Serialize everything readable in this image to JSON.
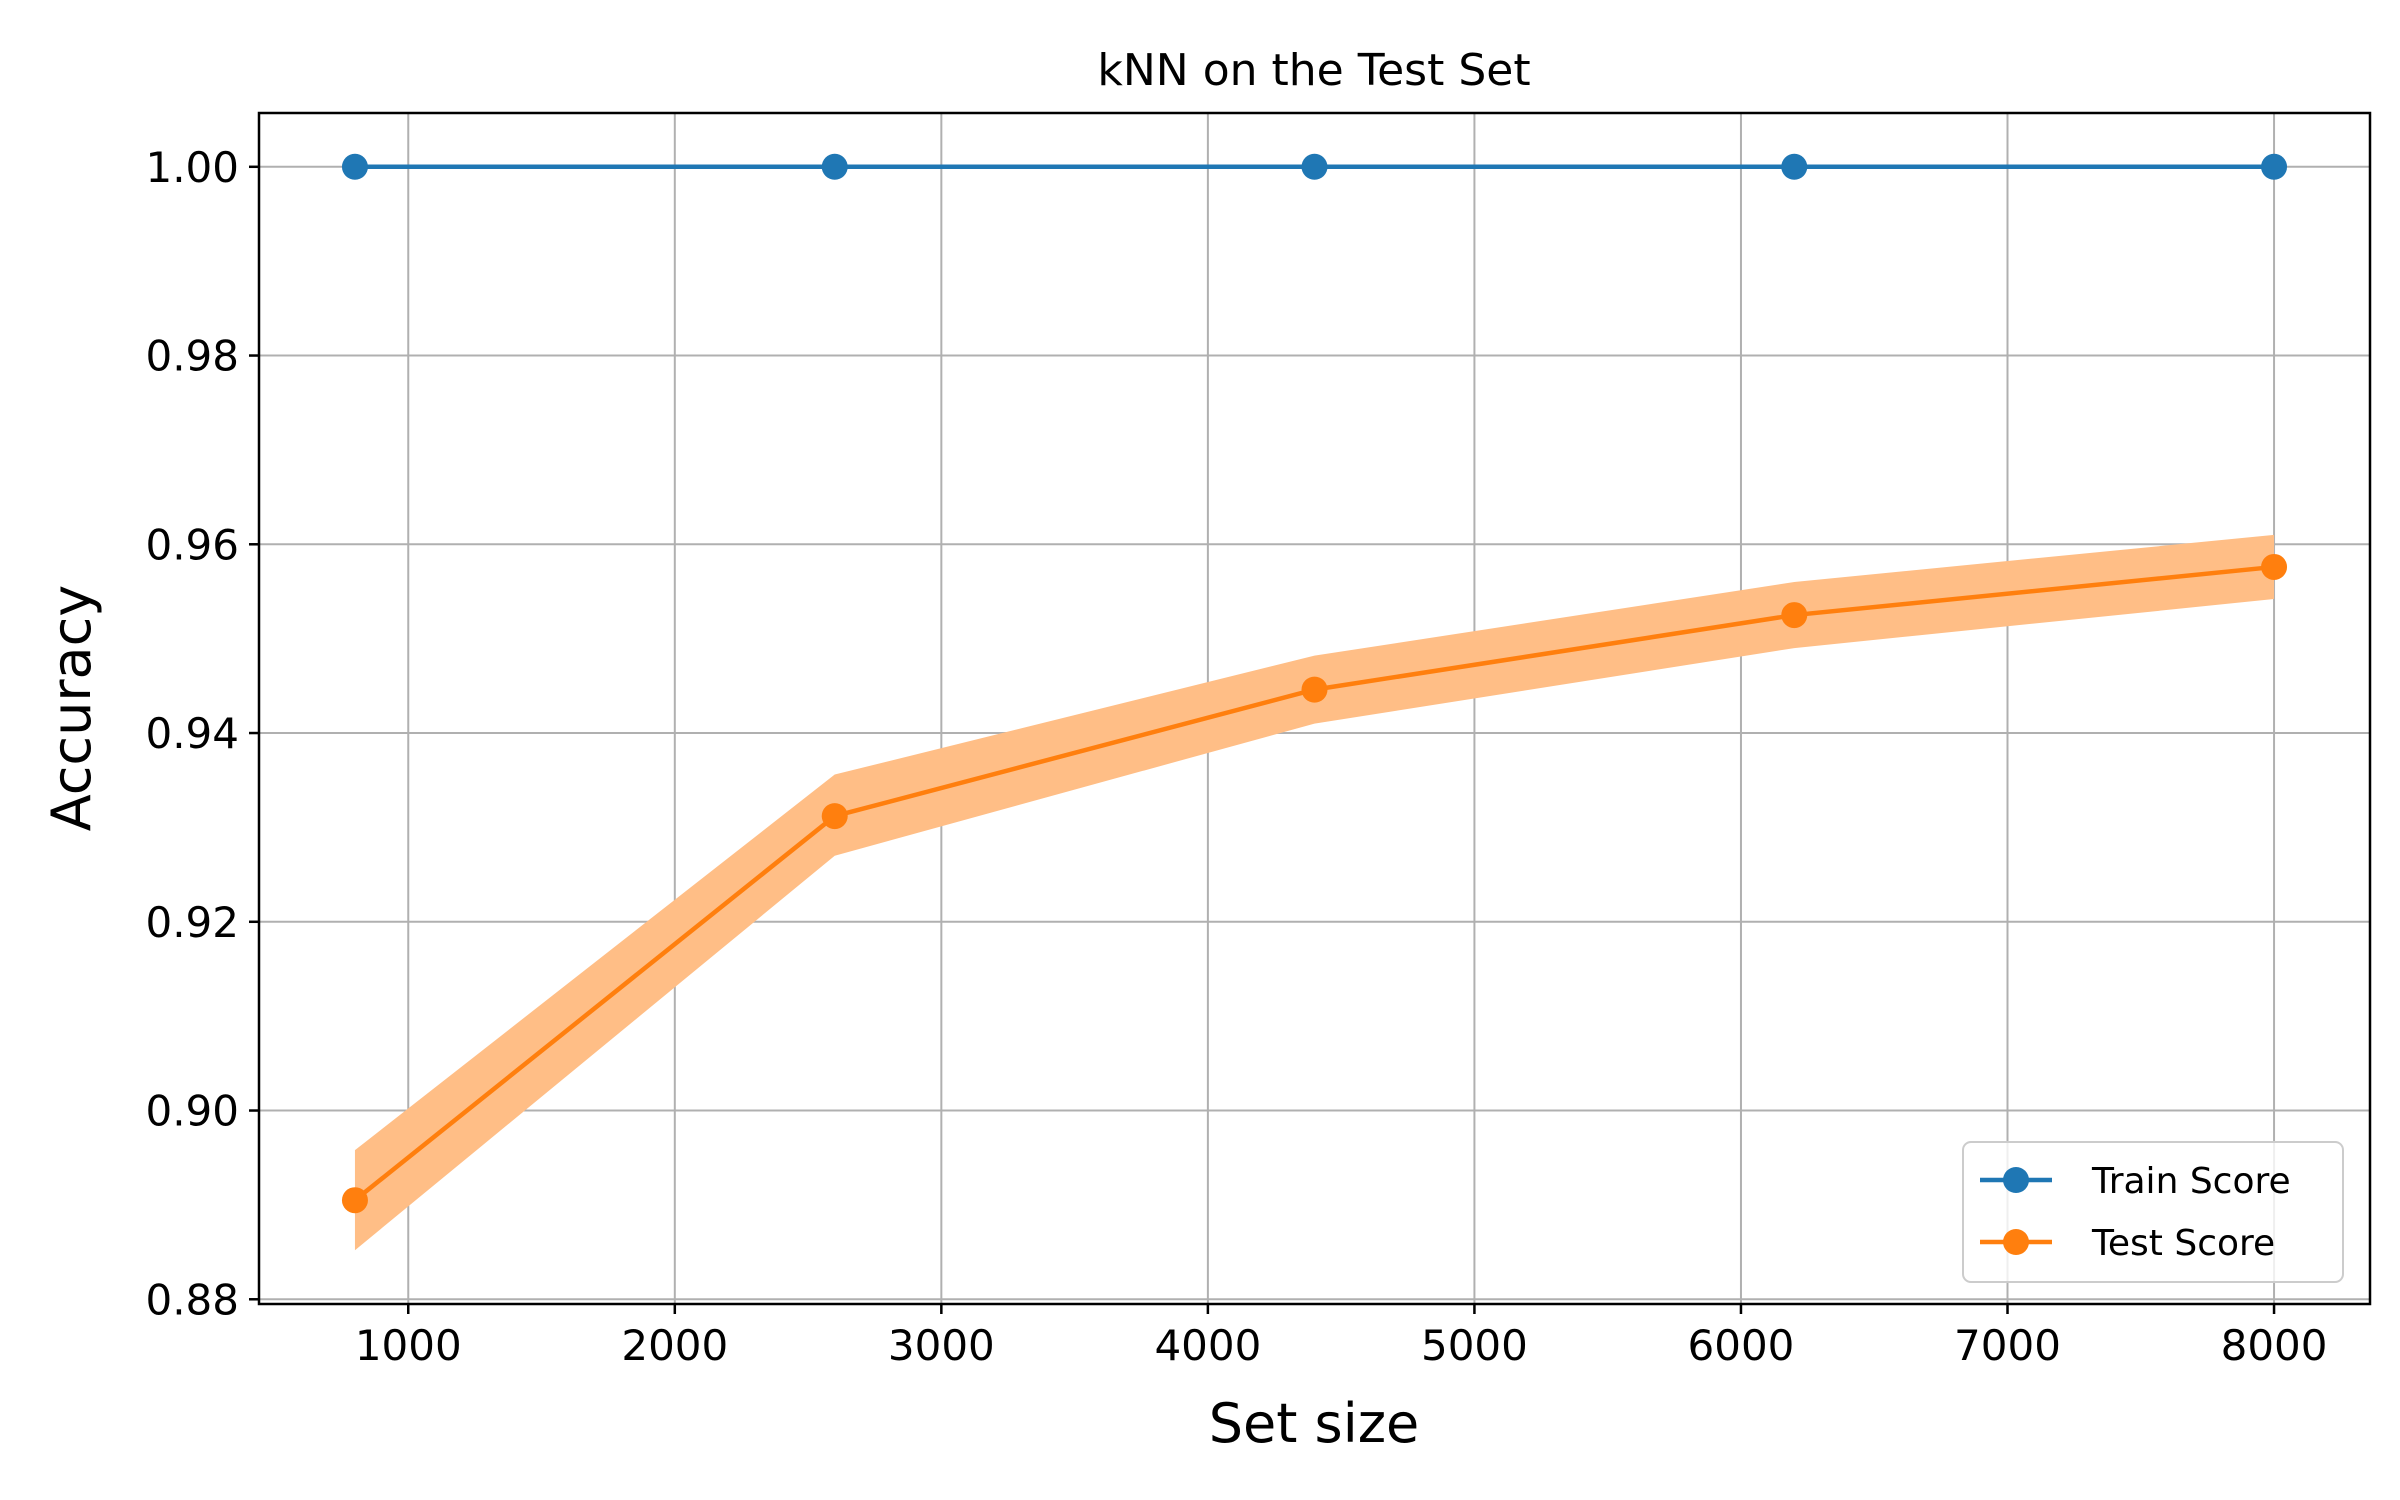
{
  "chart_data": {
    "type": "line",
    "title": "kNN on the Test Set",
    "xlabel": "Set size",
    "ylabel": "Accuracy",
    "xlim": [
      440,
      8360
    ],
    "ylim": [
      0.8795,
      1.0057
    ],
    "x": [
      800,
      2600,
      4400,
      6200,
      8000
    ],
    "xticks": [
      1000,
      2000,
      3000,
      4000,
      5000,
      6000,
      7000,
      8000
    ],
    "xtick_labels": [
      "1000",
      "2000",
      "3000",
      "4000",
      "5000",
      "6000",
      "7000",
      "8000"
    ],
    "yticks": [
      0.88,
      0.9,
      0.92,
      0.94,
      0.96,
      0.98,
      1.0
    ],
    "ytick_labels": [
      "0.88",
      "0.90",
      "0.92",
      "0.94",
      "0.96",
      "0.98",
      "1.00"
    ],
    "grid": true,
    "legend_position": "lower-right",
    "series": [
      {
        "name": "Train Score",
        "color": "#1f77b4",
        "values": [
          1.0,
          1.0,
          1.0,
          1.0,
          1.0
        ],
        "band_lower": [
          1.0,
          1.0,
          1.0,
          1.0,
          1.0
        ],
        "band_upper": [
          1.0,
          1.0,
          1.0,
          1.0,
          1.0
        ]
      },
      {
        "name": "Test Score",
        "color": "#ff7f0e",
        "band_color": "#ffbe86",
        "values": [
          0.8905,
          0.9312,
          0.9446,
          0.9525,
          0.9576
        ],
        "band_lower": [
          0.8852,
          0.927,
          0.941,
          0.949,
          0.9542
        ],
        "band_upper": [
          0.8958,
          0.9356,
          0.9482,
          0.956,
          0.961
        ]
      }
    ]
  }
}
